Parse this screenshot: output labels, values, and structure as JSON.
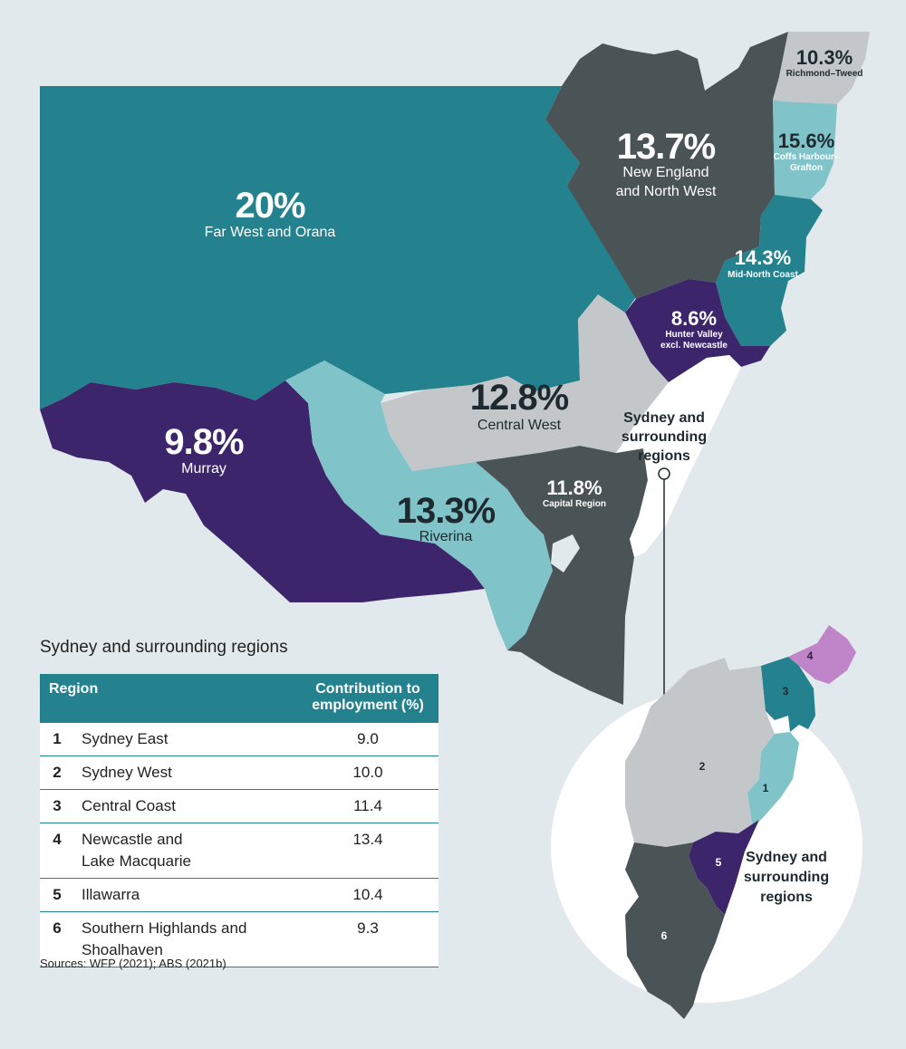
{
  "regions": {
    "far_west": {
      "pct": "20%",
      "name": "Far West and Orana"
    },
    "new_england": {
      "pct": "13.7%",
      "name_l1": "New England",
      "name_l2": "and North West"
    },
    "richmond": {
      "pct": "10.3%",
      "name": "Richmond–Tweed"
    },
    "coffs": {
      "pct": "15.6%",
      "name_l1": "Coffs Harbour–",
      "name_l2": "Grafton"
    },
    "mid_north": {
      "pct": "14.3%",
      "name": "Mid-North Coast"
    },
    "hunter": {
      "pct": "8.6%",
      "name_l1": "Hunter Valley",
      "name_l2": "excl. Newcastle"
    },
    "central_west": {
      "pct": "12.8%",
      "name": "Central West"
    },
    "murray": {
      "pct": "9.8%",
      "name": "Murray"
    },
    "riverina": {
      "pct": "13.3%",
      "name": "Riverina"
    },
    "capital": {
      "pct": "11.8%",
      "name": "Capital Region"
    }
  },
  "sydney_label": {
    "l1": "Sydney and",
    "l2": "surrounding",
    "l3": "regions"
  },
  "inset_numbers": [
    "1",
    "2",
    "3",
    "4",
    "5",
    "6"
  ],
  "table": {
    "title": "Sydney and surrounding regions",
    "col_region": "Region",
    "col_contrib_l1": "Contribution to",
    "col_contrib_l2": "employment (%)",
    "rows": [
      {
        "num": "1",
        "l1": "Sydney East",
        "l2": "",
        "value": "9.0"
      },
      {
        "num": "2",
        "l1": "Sydney West",
        "l2": "",
        "value": "10.0"
      },
      {
        "num": "3",
        "l1": "Central Coast",
        "l2": "",
        "value": "11.4"
      },
      {
        "num": "4",
        "l1": "Newcastle and",
        "l2": "Lake Macquarie",
        "value": "13.4"
      },
      {
        "num": "5",
        "l1": "Illawarra",
        "l2": "",
        "value": "10.4"
      },
      {
        "num": "6",
        "l1": "Southern Highlands and",
        "l2": "Shoalhaven",
        "value": "9.3"
      }
    ]
  },
  "sources": "Sources: WFP (2021); ABS (2021b)",
  "colors": {
    "teal_dark": "#24828e",
    "charcoal": "#4a5356",
    "purple": "#3d256b",
    "light_teal": "#80c3c8",
    "light_grey": "#c3c7ca",
    "lilac": "#c084c8",
    "background": "#e2e9ec"
  }
}
